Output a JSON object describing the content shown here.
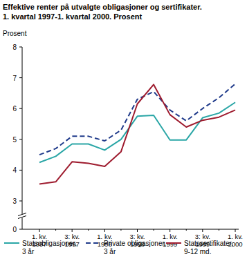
{
  "chart_data": {
    "type": "line",
    "title": "Effektive renter på utvalgte obligasjoner og sertifikater.",
    "subtitle": "1. kvartal 1997-1. kvartal 2000. Prosent",
    "y_label": "Prosent",
    "categories": [
      "1. kv. 1997",
      null,
      "3: kv. 1997",
      null,
      "1. kv. 1998",
      null,
      "3: kv. 1998",
      null,
      "1. kv. 1999",
      null,
      "3: kv. 1999",
      null,
      "1. kv. 2000"
    ],
    "series": [
      {
        "name": "Statsobligasjoner, 3 år",
        "color": "#2aa6a6",
        "line_style": "solid",
        "values": [
          4.25,
          4.45,
          4.85,
          4.85,
          4.65,
          5.0,
          5.75,
          5.78,
          4.98,
          4.98,
          5.7,
          5.85,
          6.2
        ]
      },
      {
        "name": "Private obligasjoner, 3 år",
        "color": "#1f3a8a",
        "line_style": "dashed",
        "values": [
          4.5,
          4.7,
          5.1,
          5.1,
          4.95,
          5.3,
          6.3,
          6.55,
          5.95,
          5.6,
          6.0,
          6.35,
          6.8
        ]
      },
      {
        "name": "Statssertifikater, 9-12 md.",
        "color": "#9e1b2e",
        "line_style": "solid",
        "values": [
          3.55,
          3.62,
          4.27,
          4.22,
          4.12,
          4.6,
          6.15,
          6.78,
          5.8,
          5.4,
          5.62,
          5.72,
          5.95
        ]
      }
    ],
    "ylim": [
      0,
      8
    ],
    "yticks": [
      0,
      3,
      4,
      5,
      6,
      7,
      8
    ],
    "grid": false,
    "legend": "bottom"
  }
}
